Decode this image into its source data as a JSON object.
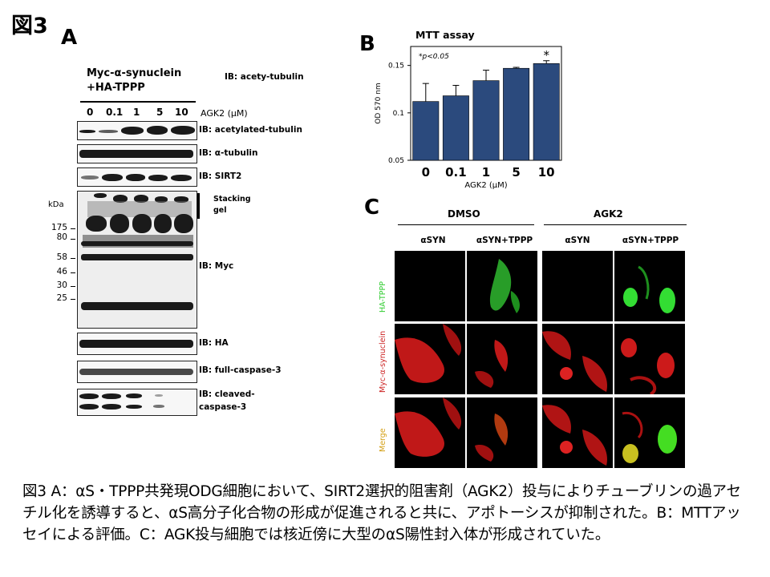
{
  "figure_label": "図3",
  "panel_a": {
    "letter": "A",
    "construct_line1": "Myc-α-synuclein",
    "construct_line2": "+HA-TPPP",
    "ib_header": "IB: acety-tubulin",
    "doses": [
      "0",
      "0.1",
      "1",
      "5",
      "10"
    ],
    "dose_label": "AGK2 (μM)",
    "kda_label": "kDa",
    "markers": [
      "175",
      "80",
      "58",
      "46",
      "30",
      "25"
    ],
    "stacking_gel_line1": "Stacking",
    "stacking_gel_line2": "gel",
    "blots": {
      "acetylated_tubulin": "IB: acetylated-tubulin",
      "alpha_tubulin": "IB: α-tubulin",
      "sirt2": "IB: SIRT2",
      "myc": "IB: Myc",
      "ha": "IB: HA",
      "full_caspase3": "IB: full-caspase-3",
      "cleaved_caspase3_line1": "IB: cleaved-",
      "cleaved_caspase3_line2": "caspase-3"
    }
  },
  "panel_b": {
    "letter": "B",
    "significance_note": "*p<0.05",
    "chart_data": {
      "type": "bar",
      "title": "MTT assay",
      "xlabel": "AGK2 (μM)",
      "ylabel": "OD 570 nm",
      "categories": [
        "0",
        "0.1",
        "1",
        "5",
        "10"
      ],
      "values": [
        0.112,
        0.118,
        0.134,
        0.147,
        0.152
      ],
      "errors": [
        0.019,
        0.011,
        0.011,
        0.001,
        0.003
      ],
      "ylim": [
        0.05,
        0.17
      ],
      "yticks": [
        "0.05",
        "0.1",
        "0.15"
      ],
      "bar_color": "#2b4a7d",
      "annotation": "*",
      "annotation_category": "10"
    }
  },
  "panel_c": {
    "letter": "C",
    "group_left": "DMSO",
    "group_right": "AGK2",
    "col_labels": [
      "αSYN",
      "αSYN+TPPP",
      "αSYN",
      "αSYN+TPPP"
    ],
    "row_labels": [
      "HA-TPPP",
      "Myc-α-synuclein",
      "Merge"
    ],
    "row_colors": [
      "#33cc33",
      "#cc2222",
      "#d4a017"
    ]
  },
  "caption": "図3 A：αS・TPPP共発現ODG細胞において、SIRT2選択的阻害剤（AGK2）投与によりチューブリンの過アセチル化を誘導すると、αS高分子化合物の形成が促進されると共に、アポトーシスが抑制された。B：MTTアッセイによる評価。C：AGK投与細胞では核近傍に大型のαS陽性封入体が形成されていた。"
}
